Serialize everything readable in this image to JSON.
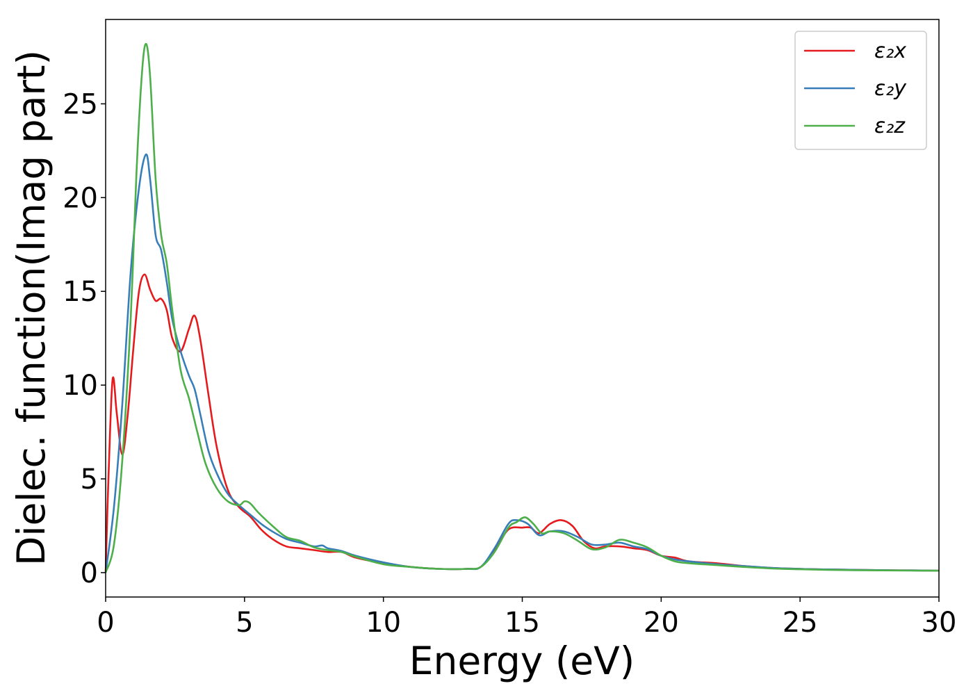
{
  "chart_data": {
    "type": "line",
    "title": "",
    "xlabel": "Energy (eV)",
    "ylabel": "Dielec. function(Imag part)",
    "xlim": [
      0,
      30
    ],
    "ylim": [
      -1.3,
      29.5
    ],
    "xticks": [
      0,
      5,
      10,
      15,
      20,
      25,
      30
    ],
    "yticks": [
      0,
      5,
      10,
      15,
      20,
      25
    ],
    "grid": false,
    "legend_position": "top-right",
    "series": [
      {
        "name": "ε₂x",
        "color": "#e41a1c",
        "x": [
          0,
          0.1,
          0.25,
          0.4,
          0.6,
          0.8,
          1.0,
          1.2,
          1.4,
          1.6,
          1.8,
          2.0,
          2.2,
          2.4,
          2.7,
          3.0,
          3.2,
          3.4,
          3.7,
          4.0,
          4.4,
          4.8,
          5.2,
          5.6,
          6.0,
          6.5,
          7.0,
          7.5,
          8.0,
          8.5,
          9.0,
          10,
          11,
          12,
          13,
          13.5,
          14,
          14.5,
          15,
          15.3,
          15.6,
          16,
          16.4,
          16.8,
          17.2,
          17.6,
          18,
          18.5,
          19,
          19.5,
          20,
          20.5,
          21,
          22,
          23,
          24,
          25,
          26,
          27,
          28,
          29,
          30
        ],
        "y": [
          0,
          5.0,
          10.3,
          8.5,
          6.3,
          8.5,
          12.0,
          15.0,
          15.9,
          15.1,
          14.5,
          14.6,
          14.0,
          12.5,
          11.8,
          13.0,
          13.7,
          12.5,
          9.5,
          6.7,
          4.4,
          3.5,
          3.0,
          2.3,
          1.8,
          1.4,
          1.3,
          1.2,
          1.1,
          1.1,
          0.8,
          0.5,
          0.3,
          0.2,
          0.2,
          0.3,
          1.2,
          2.3,
          2.4,
          2.4,
          2.1,
          2.6,
          2.8,
          2.5,
          1.7,
          1.3,
          1.4,
          1.4,
          1.3,
          1.2,
          0.9,
          0.8,
          0.6,
          0.5,
          0.35,
          0.25,
          0.2,
          0.17,
          0.15,
          0.13,
          0.12,
          0.1
        ]
      },
      {
        "name": "ε₂y",
        "color": "#377eb8",
        "x": [
          0,
          0.3,
          0.6,
          0.9,
          1.2,
          1.45,
          1.6,
          1.8,
          2.0,
          2.2,
          2.4,
          2.7,
          3.0,
          3.2,
          3.4,
          3.7,
          4.0,
          4.4,
          4.8,
          5.2,
          5.6,
          6.0,
          6.5,
          7.0,
          7.5,
          7.8,
          8.0,
          8.5,
          9.0,
          10,
          11,
          12,
          13,
          13.5,
          14,
          14.5,
          14.8,
          15.2,
          15.6,
          16,
          16.5,
          17,
          17.5,
          18,
          18.5,
          19,
          19.5,
          20,
          20.5,
          21,
          22,
          23,
          24,
          25,
          26,
          27,
          28,
          29,
          30
        ],
        "y": [
          0,
          3.5,
          9.0,
          16.0,
          20.5,
          22.3,
          21.0,
          18.0,
          17.2,
          15.5,
          13.5,
          11.8,
          10.5,
          9.8,
          8.5,
          6.5,
          5.3,
          4.2,
          3.6,
          3.1,
          2.6,
          2.2,
          1.8,
          1.6,
          1.4,
          1.45,
          1.3,
          1.15,
          0.9,
          0.55,
          0.3,
          0.2,
          0.2,
          0.3,
          1.3,
          2.6,
          2.8,
          2.6,
          2.0,
          2.2,
          2.2,
          1.9,
          1.5,
          1.5,
          1.6,
          1.4,
          1.25,
          0.9,
          0.7,
          0.6,
          0.45,
          0.35,
          0.25,
          0.2,
          0.17,
          0.15,
          0.13,
          0.12,
          0.1
        ]
      },
      {
        "name": "ε₂z",
        "color": "#4daf4a",
        "x": [
          0,
          0.3,
          0.6,
          0.9,
          1.1,
          1.3,
          1.45,
          1.6,
          1.8,
          2.0,
          2.2,
          2.4,
          2.7,
          3.0,
          3.3,
          3.6,
          4.0,
          4.4,
          4.8,
          5.0,
          5.2,
          5.5,
          6.0,
          6.5,
          7.0,
          7.5,
          8.0,
          8.5,
          9.0,
          10,
          11,
          12,
          13,
          13.5,
          14,
          14.5,
          14.8,
          15.1,
          15.4,
          15.7,
          16,
          16.5,
          17,
          17.5,
          18,
          18.5,
          19,
          19.5,
          20,
          20.5,
          21,
          22,
          23,
          24,
          25,
          26,
          27,
          28,
          29,
          30
        ],
        "y": [
          0,
          1.5,
          6.0,
          13.5,
          21.0,
          26.5,
          28.2,
          26.5,
          21.0,
          18.0,
          16.5,
          14.0,
          10.8,
          9.3,
          7.5,
          5.8,
          4.5,
          3.8,
          3.6,
          3.8,
          3.7,
          3.2,
          2.5,
          1.9,
          1.7,
          1.35,
          1.2,
          1.1,
          0.85,
          0.45,
          0.3,
          0.2,
          0.2,
          0.3,
          1.1,
          2.4,
          2.7,
          2.95,
          2.6,
          2.1,
          2.2,
          2.1,
          1.7,
          1.25,
          1.35,
          1.75,
          1.6,
          1.35,
          0.9,
          0.6,
          0.5,
          0.4,
          0.3,
          0.22,
          0.18,
          0.15,
          0.13,
          0.12,
          0.11,
          0.1
        ]
      }
    ]
  }
}
